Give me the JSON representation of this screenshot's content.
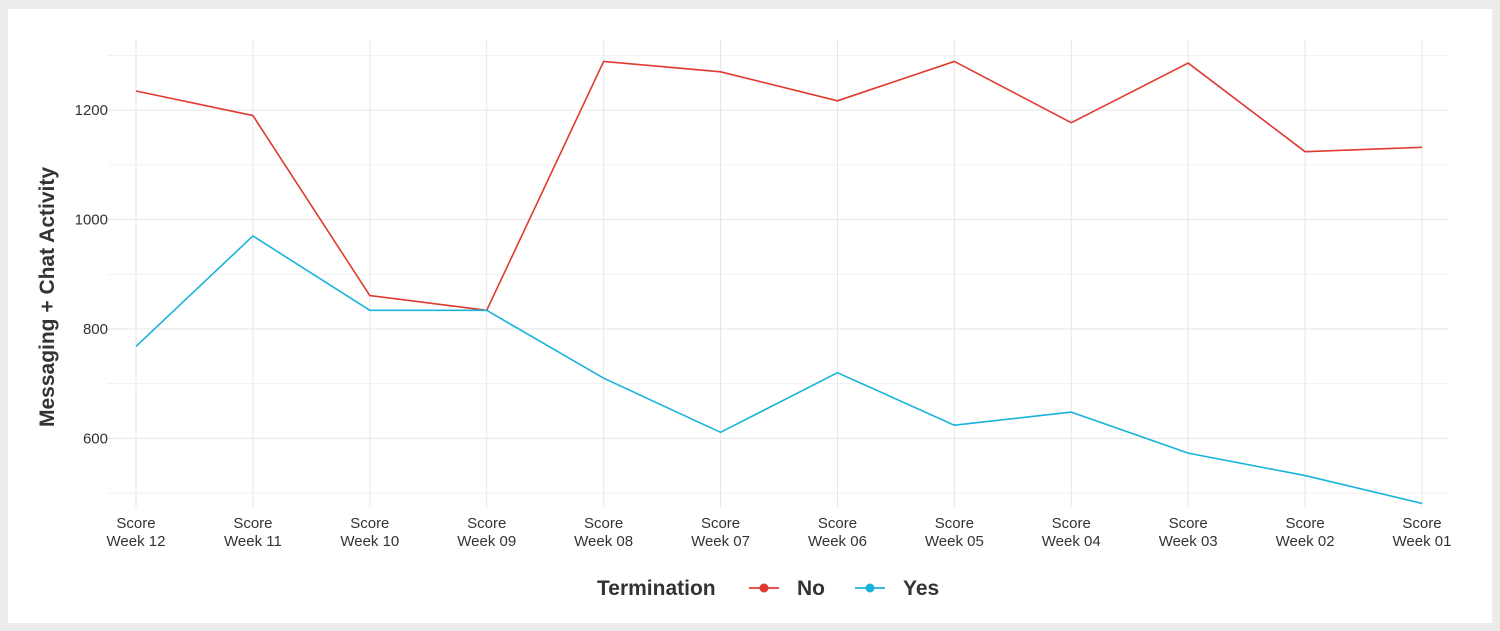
{
  "chart_data": {
    "type": "line",
    "ylabel": "Messaging + Chat Activity",
    "xlabel": "",
    "categories": [
      [
        "Score",
        "Week 12"
      ],
      [
        "Score",
        "Week 11"
      ],
      [
        "Score",
        "Week 10"
      ],
      [
        "Score",
        "Week 09"
      ],
      [
        "Score",
        "Week 08"
      ],
      [
        "Score",
        "Week 07"
      ],
      [
        "Score",
        "Week 06"
      ],
      [
        "Score",
        "Week 05"
      ],
      [
        "Score",
        "Week 04"
      ],
      [
        "Score",
        "Week 03"
      ],
      [
        "Score",
        "Week 02"
      ],
      [
        "Score",
        "Week 01"
      ]
    ],
    "yticks": [
      600,
      800,
      1000,
      1200
    ],
    "ylim": [
      480,
      1330
    ],
    "grid": true,
    "legend": {
      "title": "Termination",
      "position": "bottom"
    },
    "series": [
      {
        "name": "No",
        "color": "#e03a2f",
        "values": [
          1235,
          1190,
          861,
          834,
          1289,
          1270,
          1217,
          1289,
          1177,
          1286,
          1124,
          1132
        ]
      },
      {
        "name": "Yes",
        "color": "#18b4dc",
        "values": [
          768,
          970,
          834,
          834,
          710,
          611,
          720,
          624,
          648,
          573,
          532,
          481
        ]
      }
    ]
  }
}
